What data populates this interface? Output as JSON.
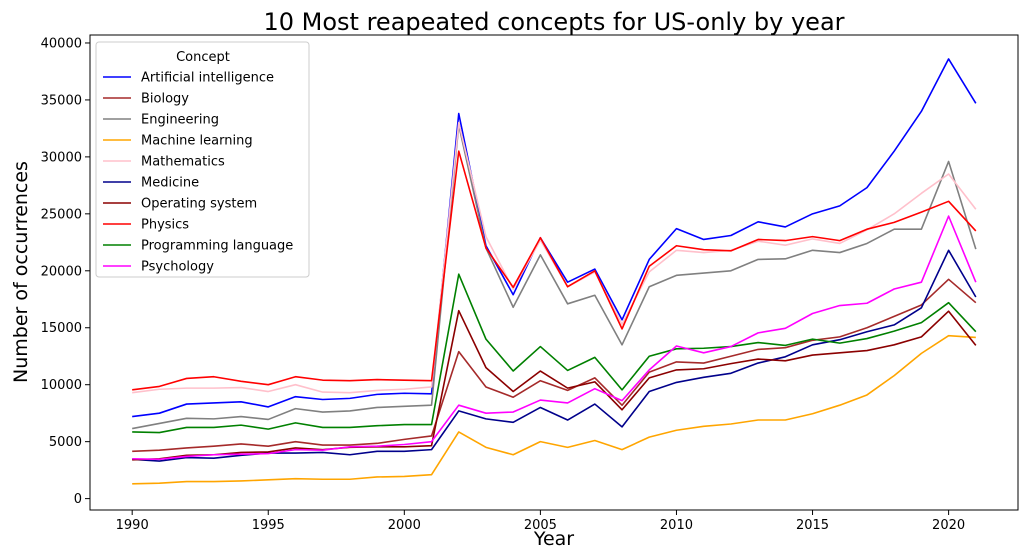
{
  "chart_data": {
    "type": "line",
    "title": "10 Most reapeated concepts for US-only by year",
    "xlabel": "Year",
    "ylabel": "Number of occurrences",
    "xlim": [
      1988.45,
      2022.55
    ],
    "ylim": [
      -1000,
      40700
    ],
    "xticks": [
      1990,
      1995,
      2000,
      2005,
      2010,
      2015,
      2020
    ],
    "yticks": [
      0,
      5000,
      10000,
      15000,
      20000,
      25000,
      30000,
      35000,
      40000
    ],
    "grid": false,
    "legend": {
      "title": "Concept",
      "placement": "top-left"
    },
    "x": [
      1990,
      1991,
      1992,
      1993,
      1994,
      1995,
      1996,
      1997,
      1998,
      1999,
      2000,
      2001,
      2002,
      2003,
      2004,
      2005,
      2006,
      2007,
      2008,
      2009,
      2010,
      2011,
      2012,
      2013,
      2014,
      2015,
      2016,
      2017,
      2018,
      2019,
      2020,
      2021
    ],
    "series": [
      {
        "name": "Artificial intelligence",
        "color": "#0000ff",
        "values": [
          7200,
          7500,
          8300,
          8400,
          8500,
          8050,
          8950,
          8700,
          8800,
          9150,
          9250,
          9200,
          33800,
          22200,
          17900,
          22900,
          19000,
          20150,
          15700,
          21000,
          23700,
          22750,
          23100,
          24300,
          23850,
          25000,
          25700,
          27300,
          30500,
          34000,
          38600,
          34700
        ]
      },
      {
        "name": "Biology",
        "color": "#a52a2a",
        "values": [
          4150,
          4250,
          4450,
          4600,
          4800,
          4600,
          5000,
          4700,
          4700,
          4850,
          5200,
          5500,
          12900,
          9800,
          8900,
          10350,
          9500,
          10600,
          8200,
          11100,
          12000,
          11900,
          12500,
          13100,
          13250,
          13900,
          14200,
          15000,
          16000,
          17000,
          19250,
          17200
        ]
      },
      {
        "name": "Engineering",
        "color": "#808080",
        "values": [
          6150,
          6600,
          7050,
          7000,
          7200,
          6950,
          7900,
          7600,
          7700,
          8000,
          8100,
          8200,
          32800,
          22000,
          16800,
          21400,
          17100,
          17850,
          13500,
          18600,
          19600,
          19800,
          20000,
          21000,
          21050,
          21800,
          21600,
          22400,
          23650,
          23650,
          29600,
          21900
        ]
      },
      {
        "name": "Machine learning",
        "color": "#ffa500",
        "values": [
          1300,
          1350,
          1500,
          1500,
          1550,
          1650,
          1750,
          1700,
          1700,
          1900,
          1950,
          2100,
          5850,
          4500,
          3850,
          5000,
          4500,
          5100,
          4300,
          5400,
          6000,
          6350,
          6550,
          6900,
          6900,
          7450,
          8200,
          9100,
          10800,
          12750,
          14300,
          14150
        ]
      },
      {
        "name": "Mathematics",
        "color": "#ffc0cb",
        "values": [
          9300,
          9600,
          9700,
          9700,
          9750,
          9400,
          10000,
          9350,
          9300,
          9500,
          9600,
          9800,
          33000,
          23000,
          18400,
          22700,
          18600,
          19900,
          15300,
          19900,
          21800,
          21600,
          21800,
          22600,
          22250,
          22800,
          22400,
          23600,
          25000,
          26800,
          28500,
          25400
        ]
      },
      {
        "name": "Medicine",
        "color": "#00008b",
        "values": [
          3450,
          3300,
          3600,
          3550,
          3800,
          4000,
          4000,
          4050,
          3850,
          4150,
          4150,
          4300,
          7700,
          7000,
          6700,
          8000,
          6900,
          8300,
          6300,
          9400,
          10200,
          10650,
          11000,
          11900,
          12450,
          13500,
          13950,
          14650,
          15250,
          16750,
          21800,
          17700
        ]
      },
      {
        "name": "Operating system",
        "color": "#8b0000",
        "values": [
          3400,
          3500,
          3800,
          3850,
          4050,
          4100,
          4450,
          4300,
          4500,
          4550,
          4550,
          4650,
          16500,
          11500,
          9400,
          11200,
          9700,
          10250,
          7800,
          10600,
          11300,
          11400,
          11850,
          12250,
          12100,
          12600,
          12800,
          13000,
          13500,
          14200,
          16450,
          13450
        ]
      },
      {
        "name": "Physics",
        "color": "#ff0000",
        "values": [
          9550,
          9850,
          10550,
          10700,
          10300,
          10000,
          10700,
          10400,
          10350,
          10450,
          10400,
          10350,
          30500,
          22000,
          18550,
          22900,
          18600,
          20000,
          14900,
          20400,
          22200,
          21850,
          21750,
          22750,
          22650,
          23000,
          22650,
          23650,
          24250,
          25150,
          26100,
          23500
        ]
      },
      {
        "name": "Programming language",
        "color": "#008000",
        "values": [
          5850,
          5800,
          6250,
          6250,
          6450,
          6100,
          6650,
          6250,
          6250,
          6400,
          6500,
          6500,
          19700,
          14000,
          11200,
          13350,
          11250,
          12400,
          9550,
          12500,
          13150,
          13200,
          13350,
          13700,
          13450,
          14000,
          13650,
          14050,
          14700,
          15450,
          17200,
          14650
        ]
      },
      {
        "name": "Psychology",
        "color": "#ff00ff",
        "values": [
          3500,
          3450,
          3700,
          3850,
          3900,
          3950,
          4300,
          4250,
          4550,
          4600,
          4750,
          5000,
          8200,
          7500,
          7600,
          8650,
          8400,
          9650,
          8600,
          11300,
          13400,
          12800,
          13350,
          14550,
          14950,
          16250,
          16950,
          17150,
          18400,
          19000,
          24800,
          19000
        ]
      }
    ]
  }
}
